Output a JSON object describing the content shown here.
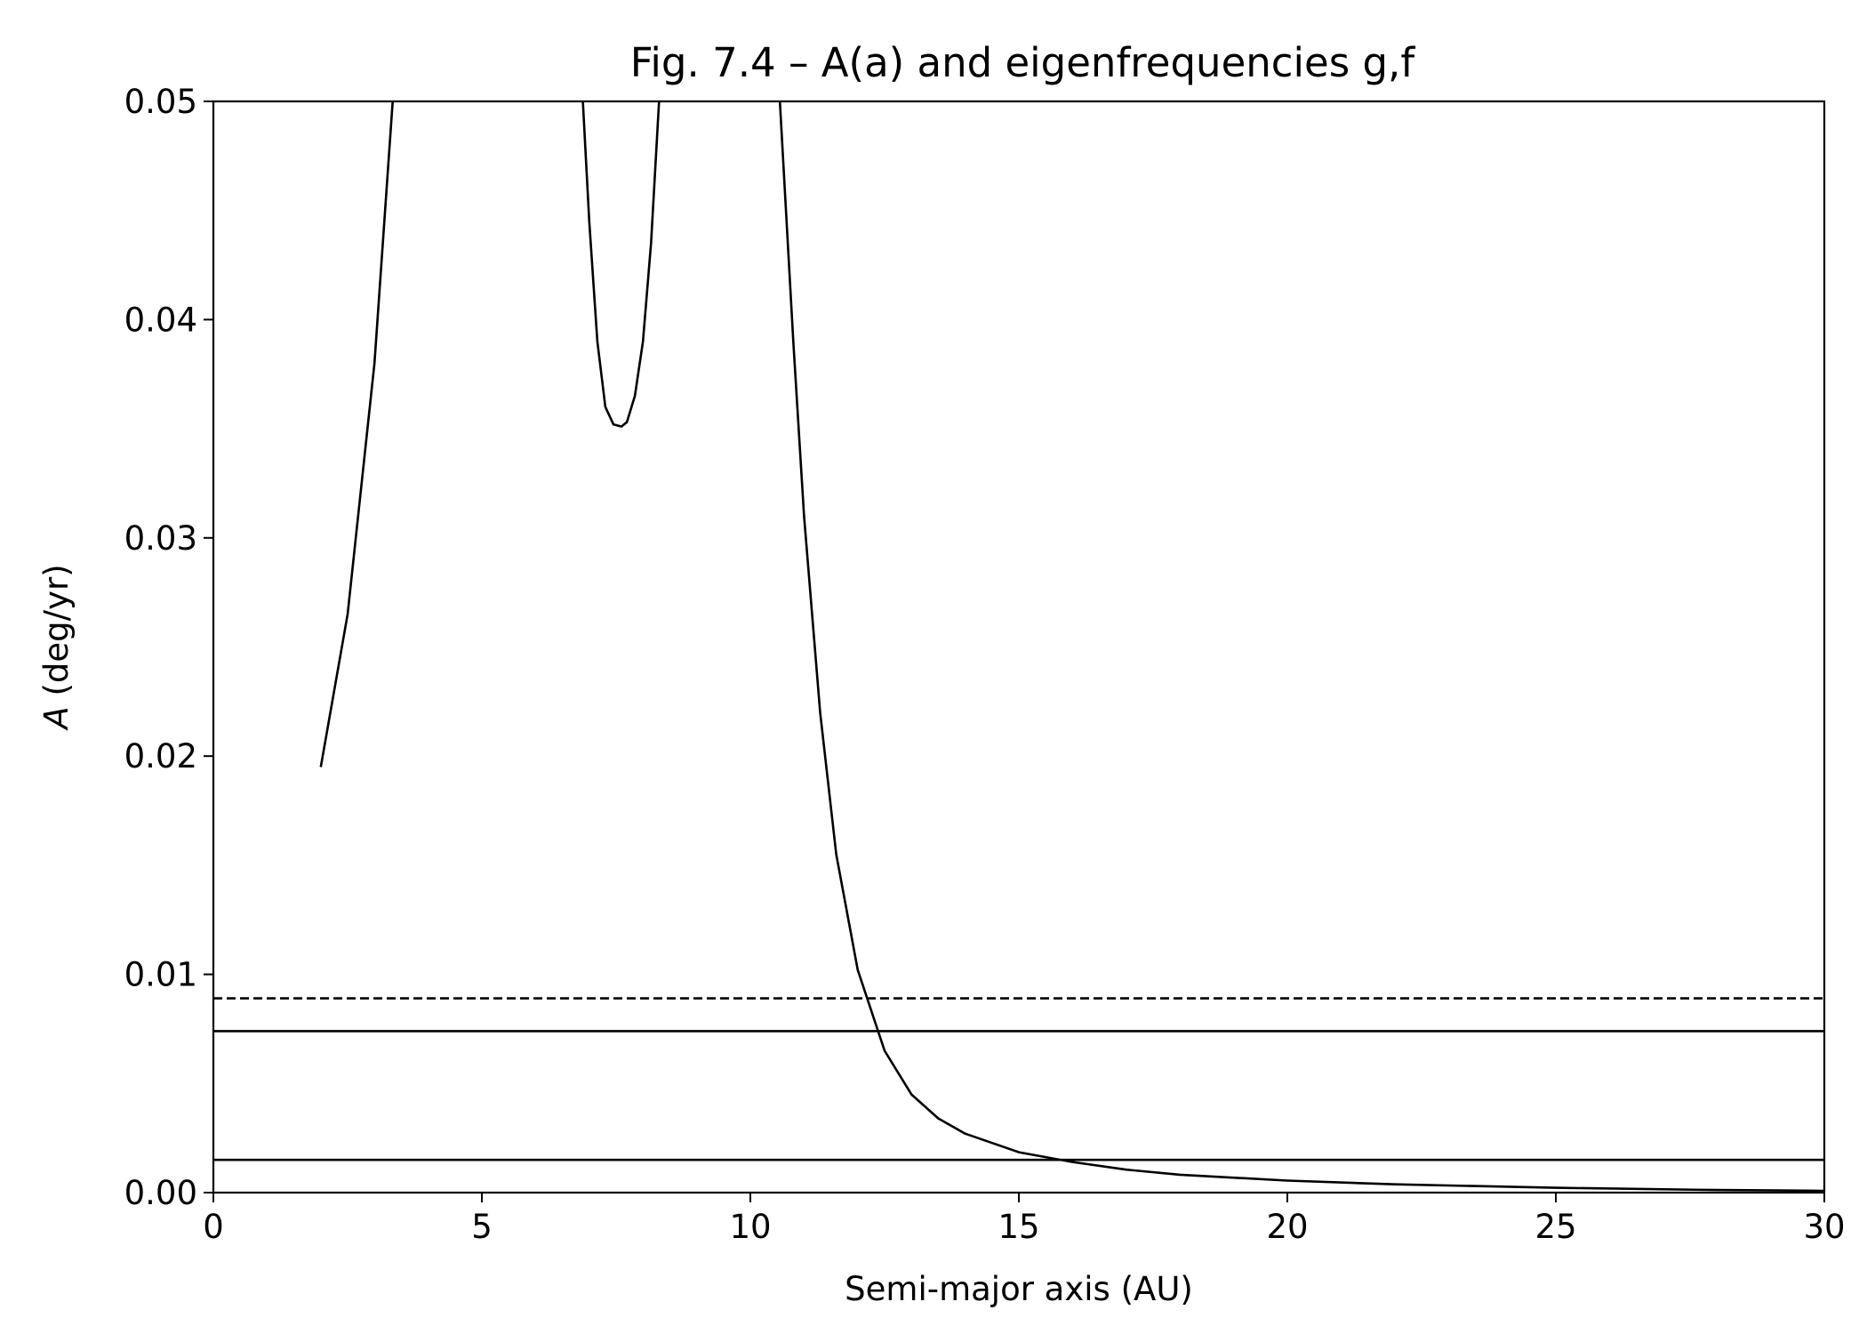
{
  "chart_data": {
    "type": "line",
    "title": "Fig. 7.4 – A(a) and eigenfrequencies g,f",
    "xlabel": "Semi-major axis (AU)",
    "ylabel_italic": "A",
    "ylabel_rest": " (deg/yr)",
    "xlim": [
      0,
      30
    ],
    "ylim": [
      0,
      0.05
    ],
    "xticks": [
      0,
      5,
      10,
      15,
      20,
      25,
      30
    ],
    "xtick_labels": [
      "0",
      "5",
      "10",
      "15",
      "20",
      "25",
      "30"
    ],
    "yticks": [
      0,
      0.01,
      0.02,
      0.03,
      0.04,
      0.05
    ],
    "ytick_labels": [
      "0.00",
      "0.01",
      "0.02",
      "0.03",
      "0.04",
      "0.05"
    ],
    "grid": false,
    "legend": "none",
    "line_color": "#000000",
    "series": [
      {
        "style": "solid",
        "x": [
          2.0,
          2.5,
          3.0,
          3.34
        ],
        "y": [
          0.0195,
          0.0265,
          0.038,
          0.05
        ]
      },
      {
        "style": "solid",
        "x": [
          6.88,
          7.0,
          7.15,
          7.3,
          7.45,
          7.6,
          7.7,
          7.85,
          8.0,
          8.15,
          8.3
        ],
        "y": [
          0.05,
          0.0445,
          0.039,
          0.036,
          0.0352,
          0.0351,
          0.0353,
          0.0365,
          0.039,
          0.0435,
          0.05
        ]
      },
      {
        "style": "solid",
        "x": [
          10.55,
          10.8,
          11.0,
          11.3,
          11.6,
          12.0,
          12.5,
          13.0,
          13.5,
          14.0,
          15.0,
          16.0,
          17.0,
          18.0,
          20.0,
          22.0,
          25.0,
          28.0,
          30.0
        ],
        "y": [
          0.05,
          0.039,
          0.031,
          0.022,
          0.0155,
          0.0102,
          0.0065,
          0.0045,
          0.0034,
          0.0027,
          0.00185,
          0.0014,
          0.00105,
          0.00082,
          0.00055,
          0.00038,
          0.00022,
          0.00012,
          8e-05
        ]
      },
      {
        "style": "dashed",
        "x": [
          0,
          30
        ],
        "y": [
          0.0089,
          0.0089
        ]
      },
      {
        "style": "solid",
        "x": [
          0,
          30
        ],
        "y": [
          0.0074,
          0.0074
        ]
      },
      {
        "style": "solid",
        "x": [
          0,
          30
        ],
        "y": [
          0.0015,
          0.0015
        ]
      }
    ]
  }
}
